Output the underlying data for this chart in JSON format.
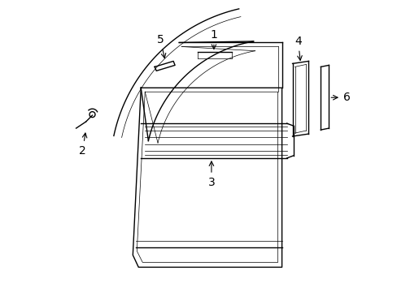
{
  "bg_color": "#ffffff",
  "line_color": "#000000",
  "figsize": [
    4.89,
    3.6
  ],
  "dpi": 100,
  "lw_main": 1.0,
  "lw_thin": 0.5,
  "lw_thick": 1.2
}
